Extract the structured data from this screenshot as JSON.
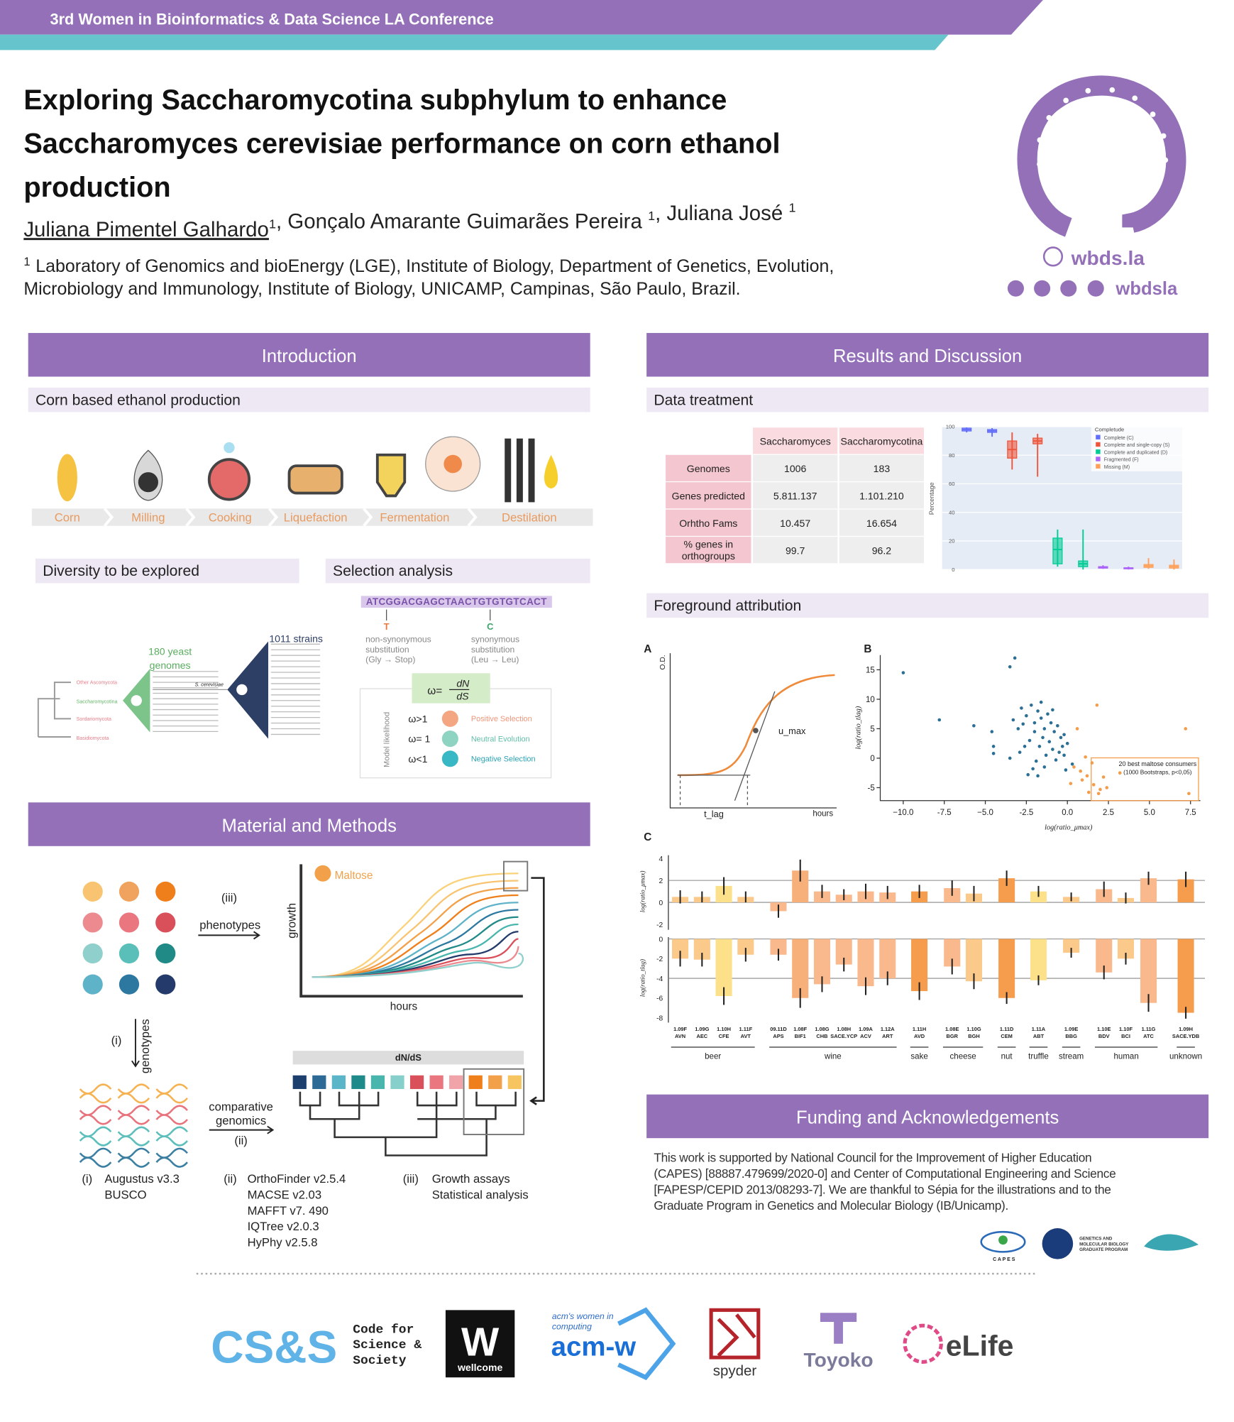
{
  "header": {
    "conference": "3rd Women in Bioinformatics & Data Science LA Conference",
    "title": [
      "Exploring Saccharomycotina subphylum to enhance",
      "Saccharomyces cerevisiae performance on corn ethanol",
      "production"
    ],
    "authors": [
      {
        "name": "Juliana Pimentel Galhardo",
        "affiliation": "1"
      },
      {
        "name": ", Gonçalo Amarante Guimarães Pereira ",
        "affiliation": "1"
      },
      {
        "name": ", Juliana José ",
        "affiliation": "1"
      }
    ],
    "affiliation": {
      "number": "1",
      "lines": [
        "Laboratory of Genomics and bioEnergy (LGE), Institute of Biology, Department of Genetics, Evolution,",
        "Microbiology and Immunology, Institute of Biology, UNICAMP, Campinas, São Paulo, Brazil."
      ]
    },
    "website": "wbds.la",
    "handle": "wbdsla"
  },
  "introduction": {
    "heading": "Introduction",
    "corn": {
      "subheading": "Corn based ethanol production",
      "steps": [
        "Corn",
        "Milling",
        "Cooking",
        "Liquefaction",
        "Fermentation",
        "Destilation"
      ]
    },
    "diversity": {
      "subheading": "Diversity to be explored",
      "clades": [
        "Other Ascomycota",
        "Saccharomycotina",
        "Sordariomycota",
        "Basidiomycota"
      ],
      "yeast": [
        "180 yeast",
        "genomes"
      ],
      "strains": "1011 strains",
      "species": "S. cerevisiae"
    },
    "selection": {
      "subheading": "Selection analysis",
      "sequence": "ATCGGACGAGCTAACTGTGTGTCACT",
      "codons": [
        "T",
        "C"
      ],
      "non_synonymous": [
        "non-synonymous",
        "substitution",
        "(Gly → Stop)"
      ],
      "synonymous": [
        "synonymous",
        "substitution",
        "(Leu → Leu)"
      ],
      "formula": {
        "lhs": "ω=",
        "numerator": "dN",
        "denominator": "dS"
      },
      "model_label": "Model likelihood",
      "models": [
        {
          "ratio": "ω>1",
          "label": "Positive Selection"
        },
        {
          "ratio": "ω= 1",
          "label": "Neutral Evolution"
        },
        {
          "ratio": "ω<1",
          "label": "Negative Selection"
        }
      ]
    }
  },
  "methods": {
    "heading": "Material and Methods",
    "phenotypes": [
      "(iii)",
      "phenotypes"
    ],
    "genotypes": [
      "(i)",
      "genotypes"
    ],
    "comparative": [
      "comparative",
      "genomics",
      "(ii)"
    ],
    "growth_plot": {
      "y_label": "growth",
      "x_label": "hours",
      "medium": "Maltose"
    },
    "tree_label": "dN/dS",
    "tools": [
      {
        "id": "(i)",
        "items": [
          "Augustus v3.3",
          "BUSCO"
        ]
      },
      {
        "id": "(ii)",
        "items": [
          "OrthoFinder v2.5.4",
          "MACSE v2.03",
          "MAFFT v7. 490",
          "IQTree v2.0.3",
          "HyPhy v2.5.8"
        ]
      },
      {
        "id": "(iii)",
        "items": [
          "Growth assays",
          "Statistical analysis"
        ]
      }
    ]
  },
  "results": {
    "heading": "Results and Discussion",
    "data_treatment": "Data treatment",
    "table": {
      "header": [
        "Saccharomyces",
        "Saccharomycotina"
      ],
      "rows": [
        {
          "label": [
            "Genomes"
          ],
          "cells": [
            "1006",
            "183"
          ]
        },
        {
          "label": [
            "Genes predicted"
          ],
          "cells": [
            "5.811.137",
            "1.101.210"
          ]
        },
        {
          "label": [
            "Orhtho Fams"
          ],
          "cells": [
            "10.457",
            "16.654"
          ]
        },
        {
          "label": [
            "% genes in",
            "orthogroups"
          ],
          "cells": [
            "99.7",
            "96.2"
          ]
        }
      ]
    },
    "foreground": "Foreground attribution",
    "panel_a": {
      "letter": "A",
      "y_label": "O.D.",
      "rate": "u_max",
      "lag": "t_lag",
      "x_label": "hours"
    }
  },
  "chart_data": [
    {
      "type": "box",
      "y_label": "Percentage",
      "legend_title": "Completude",
      "ylim": [
        0,
        100
      ],
      "yticks": [
        0,
        20,
        40,
        60,
        80,
        100
      ],
      "series": [
        {
          "name": "Complete (C)",
          "color": "#636efa",
          "min": [
            96,
            93
          ],
          "q1": [
            97,
            96
          ],
          "median": [
            98,
            97
          ],
          "q3": [
            99,
            98
          ],
          "max": [
            99.5,
            99
          ]
        },
        {
          "name": "Complete and single-copy (S)",
          "color": "#ef553b",
          "min": [
            70,
            65
          ],
          "q1": [
            78,
            88
          ],
          "median": [
            84,
            90
          ],
          "q3": [
            90,
            92
          ],
          "max": [
            96,
            95
          ]
        },
        {
          "name": "Complete and duplicated (D)",
          "color": "#00cc96",
          "min": [
            2,
            0
          ],
          "q1": [
            4,
            2
          ],
          "median": [
            14,
            4
          ],
          "q3": [
            22,
            6
          ],
          "max": [
            28,
            28
          ]
        },
        {
          "name": "Fragmented (F)",
          "color": "#ab63fa",
          "min": [
            0.5,
            0
          ],
          "q1": [
            1,
            0.5
          ],
          "median": [
            1.5,
            1
          ],
          "q3": [
            2,
            1.2
          ],
          "max": [
            3,
            2
          ]
        },
        {
          "name": "Missing (M)",
          "color": "#ffa15a",
          "min": [
            0.5,
            0
          ],
          "q1": [
            1.5,
            1
          ],
          "median": [
            2.5,
            2
          ],
          "q3": [
            3.5,
            3
          ],
          "max": [
            8,
            7
          ]
        }
      ]
    },
    {
      "type": "scatter",
      "panel": "B",
      "x_label": "log(ratio_μmax)",
      "y_label": "log(ratio_tlag)",
      "xlim": [
        -11.4,
        8.1
      ],
      "ylim": [
        -7.2,
        17.5
      ],
      "xticks": [
        {
          "value": -10,
          "label": "−10.0"
        },
        -7.5,
        {
          "value": -5,
          "label": "−5.0"
        },
        -2.5,
        {
          "value": 0,
          "label": "0.0"
        },
        2.5,
        {
          "value": 5,
          "label": "5.0"
        },
        7.5
      ],
      "yticks": [
        15,
        10,
        5,
        0,
        -5
      ],
      "annotation": [
        "20 best maltose consumers",
        "(1000 Bootstraps, p<0,05)"
      ],
      "series": [
        {
          "color": "#2b6f95",
          "x": [
            -10,
            -7.8,
            -5.7,
            -3.5,
            -3.2,
            -4.5,
            -4.5,
            -4.6,
            -2.8,
            -2.5,
            -2.2,
            -2,
            -1.8,
            -1.6,
            -1.4,
            -1.2,
            -1,
            -0.8,
            -0.6,
            -0.4,
            -0.2,
            0,
            -1.5,
            -2,
            -2.3,
            -1.7,
            -1.1,
            -0.9,
            -0.5,
            -0.3,
            -1.3,
            -2.6,
            -3,
            -3.3,
            -2.9,
            -1.9,
            -1.4,
            -2.4,
            -0.7,
            -0.2,
            0.3,
            -0.1,
            -1.8,
            -3.5,
            -2.1,
            -1.6,
            -0.9,
            -2.7
          ],
          "y": [
            14.5,
            6.5,
            5.5,
            15.5,
            17,
            2,
            0.8,
            4.5,
            8.5,
            7.2,
            9,
            6,
            8,
            6.8,
            5,
            7.5,
            6,
            4.5,
            5.5,
            3.5,
            4,
            2.5,
            3.5,
            4.5,
            3,
            2,
            2.8,
            1.5,
            1,
            2,
            0.5,
            2,
            5,
            6.5,
            1,
            -0.5,
            -1.5,
            -2.8,
            -0.3,
            0.5,
            -1,
            -2,
            -3,
            0,
            -1.8,
            9.5,
            8.2,
            5.8
          ]
        },
        {
          "color": "#f39c4a",
          "x": [
            0.4,
            0.8,
            1.2,
            1.6,
            2,
            2.4,
            1.3,
            1.9,
            0.9,
            1.5,
            2.2,
            3.2,
            1.8,
            0.6,
            7.2,
            7.4,
            0.2,
            1.1
          ],
          "y": [
            -1.5,
            -2.2,
            -3,
            -4.5,
            -5.3,
            -5,
            -5.8,
            -6,
            -3.7,
            -0.8,
            -3.2,
            -2.5,
            9,
            5,
            5,
            -6,
            -4.3,
            0.2
          ]
        }
      ]
    },
    {
      "type": "bar",
      "panel": "C",
      "categories": [
        [
          "1.09F",
          "AVN"
        ],
        [
          "1.09G",
          "AEC"
        ],
        [
          "1.10H",
          "CFE"
        ],
        [
          "1.11F",
          "AVT"
        ],
        [
          "09.11D",
          "APS"
        ],
        [
          "1.08F",
          "BIF1"
        ],
        [
          "1.08G",
          "CHB"
        ],
        [
          "1.08H",
          "SACE.YCP"
        ],
        [
          "1.09A",
          "ACV"
        ],
        [
          "1.12A",
          "ART"
        ],
        [
          "1.11H",
          "AVD"
        ],
        [
          "1.08E",
          "BGR"
        ],
        [
          "1.10G",
          "BGH"
        ],
        [
          "1.11D",
          "CEM"
        ],
        [
          "1.11A",
          "ABT"
        ],
        [
          "1.09E",
          "BBG"
        ],
        [
          "1.10E",
          "BDV"
        ],
        [
          "1.10F",
          "BCI"
        ],
        [
          "1.11G",
          "ATC"
        ],
        [
          "1.09H",
          "SACE.YDB"
        ]
      ],
      "groups": [
        "beer",
        "beer",
        "beer",
        "beer",
        "wine",
        "wine",
        "wine",
        "wine",
        "wine",
        "wine",
        "sake",
        "cheese",
        "cheese",
        "nut",
        "truffle",
        "stream",
        "human",
        "human",
        "human",
        "unknown"
      ],
      "colors": [
        "#fbc98a",
        "#fbc98a",
        "#fde08a",
        "#fbc98a",
        "#f9b98d",
        "#f7b07a",
        "#f9b98d",
        "#f9b98d",
        "#f9b98d",
        "#f9b98d",
        "#f59d4d",
        "#f9b98d",
        "#fbc98a",
        "#f59d4d",
        "#fde08a",
        "#fbc98a",
        "#f9b98d",
        "#fbc98a",
        "#f9b98d",
        "#f59d4d"
      ],
      "ylim": [
        -2.5,
        4.3
      ],
      "yticks": [
        4,
        2,
        0,
        -2
      ],
      "y2lim": [
        -8.5,
        0.1
      ],
      "y2ticks": [
        0,
        -2,
        -4,
        -6,
        -8
      ],
      "series": [
        {
          "name": "log(ratio_μmax)",
          "values": [
            0.5,
            0.5,
            1.5,
            0.5,
            -0.8,
            2.9,
            1,
            0.7,
            1,
            0.9,
            1,
            1.3,
            0.8,
            2.2,
            1,
            0.5,
            1.2,
            0.4,
            2.2,
            2.1
          ],
          "errors": [
            0.6,
            0.5,
            0.8,
            0.5,
            0.6,
            1,
            0.6,
            0.5,
            0.7,
            0.6,
            0.6,
            0.7,
            0.7,
            0.7,
            0.5,
            0.4,
            0.7,
            0.5,
            0.6,
            0.7
          ]
        },
        {
          "name": "log(ratio_tlag)",
          "axis": "y2",
          "values": [
            -2,
            -2.1,
            -5.8,
            -1.6,
            -1.6,
            -6,
            -4.6,
            -2.6,
            -4.8,
            -4,
            -5.3,
            -2.8,
            -4.3,
            -6,
            -4.2,
            -1.4,
            -3.4,
            -2,
            -6.5,
            -7.5
          ],
          "errors": [
            0.8,
            0.7,
            0.9,
            0.7,
            0.6,
            1,
            0.8,
            0.7,
            0.9,
            0.7,
            0.9,
            0.8,
            0.8,
            0.6,
            0.5,
            0.5,
            0.7,
            0.6,
            0.9,
            0.6
          ]
        }
      ]
    }
  ],
  "funding": {
    "heading": "Funding and Acknowledgements",
    "lines": [
      "This work is supported by National Council for the Improvement of Higher Education",
      "(CAPES) [88887.479699/2020-0] and Center of Computational Engineering and Science",
      "[FAPESP/CEPID 2013/08293-7]. We are thankful to Sépia for the illustrations and to the",
      "Graduate Program in Genetics and Molecular Biology (IB/Unicamp)."
    ],
    "logos": {
      "capes": "C A P E S",
      "program": [
        "GENETICS AND",
        "MOLECULAR BIOLOGY",
        "GRADUATE PROGRAM"
      ]
    }
  },
  "sponsors": {
    "css": "CS&S",
    "css_name": [
      "Code for",
      "Science &",
      "Society"
    ],
    "wellcome": [
      "W",
      "wellcome"
    ],
    "acm": [
      "acm's women in",
      "computing",
      "acm-w"
    ],
    "spyder": "spyder",
    "toyoko": "Toyoko",
    "elife": "eLife"
  }
}
